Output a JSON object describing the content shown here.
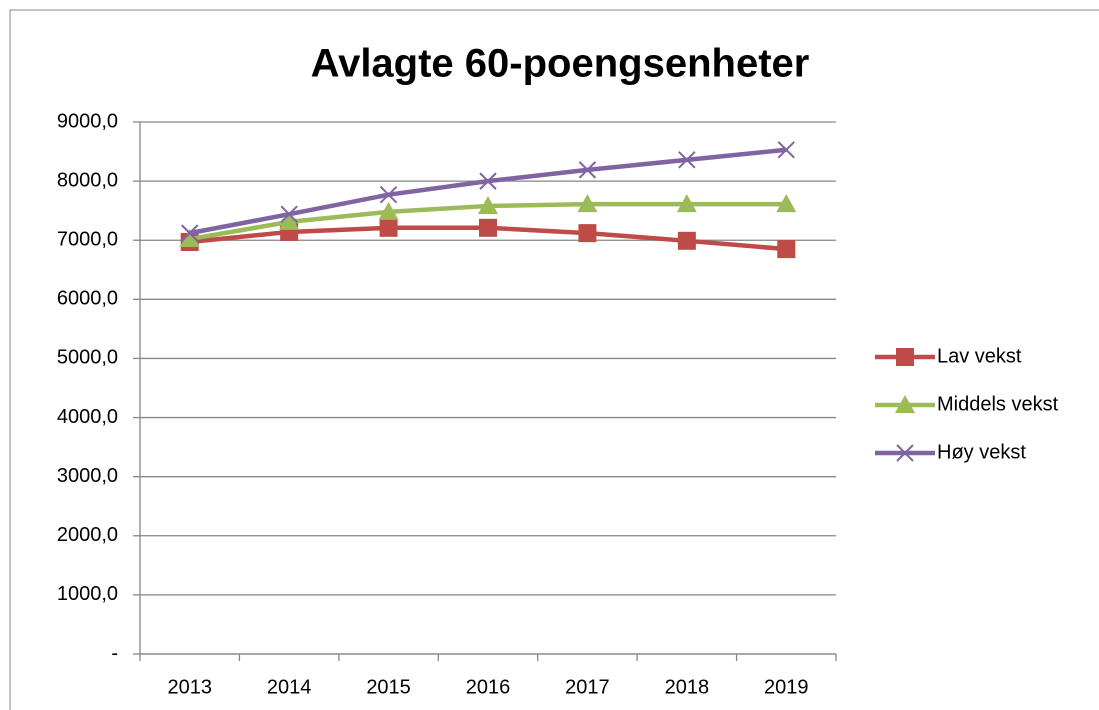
{
  "chart_data": {
    "type": "line",
    "title": "Avlagte 60-poengsenheter",
    "categories": [
      "2013",
      "2014",
      "2015",
      "2016",
      "2017",
      "2018",
      "2019"
    ],
    "series": [
      {
        "name": "Lav vekst",
        "color": "#be4b48",
        "marker": "square",
        "values": [
          6970,
          7140,
          7210,
          7210,
          7120,
          6990,
          6850
        ]
      },
      {
        "name": "Middels vekst",
        "color": "#9bbb59",
        "marker": "triangle",
        "values": [
          7020,
          7310,
          7480,
          7580,
          7610,
          7610,
          7610
        ]
      },
      {
        "name": "Høy vekst",
        "color": "#8064a2",
        "marker": "x",
        "values": [
          7120,
          7440,
          7770,
          8000,
          8190,
          8360,
          8530
        ]
      }
    ],
    "ylim": [
      0,
      9000
    ],
    "yticks": [
      {
        "value": 0,
        "label": "-"
      },
      {
        "value": 1000,
        "label": "1000,0"
      },
      {
        "value": 2000,
        "label": "2000,0"
      },
      {
        "value": 3000,
        "label": "3000,0"
      },
      {
        "value": 4000,
        "label": "4000,0"
      },
      {
        "value": 5000,
        "label": "5000,0"
      },
      {
        "value": 6000,
        "label": "6000,0"
      },
      {
        "value": 7000,
        "label": "7000,0"
      },
      {
        "value": 8000,
        "label": "8000,0"
      },
      {
        "value": 9000,
        "label": "9000,0"
      }
    ],
    "grid": true,
    "legend": "right"
  }
}
